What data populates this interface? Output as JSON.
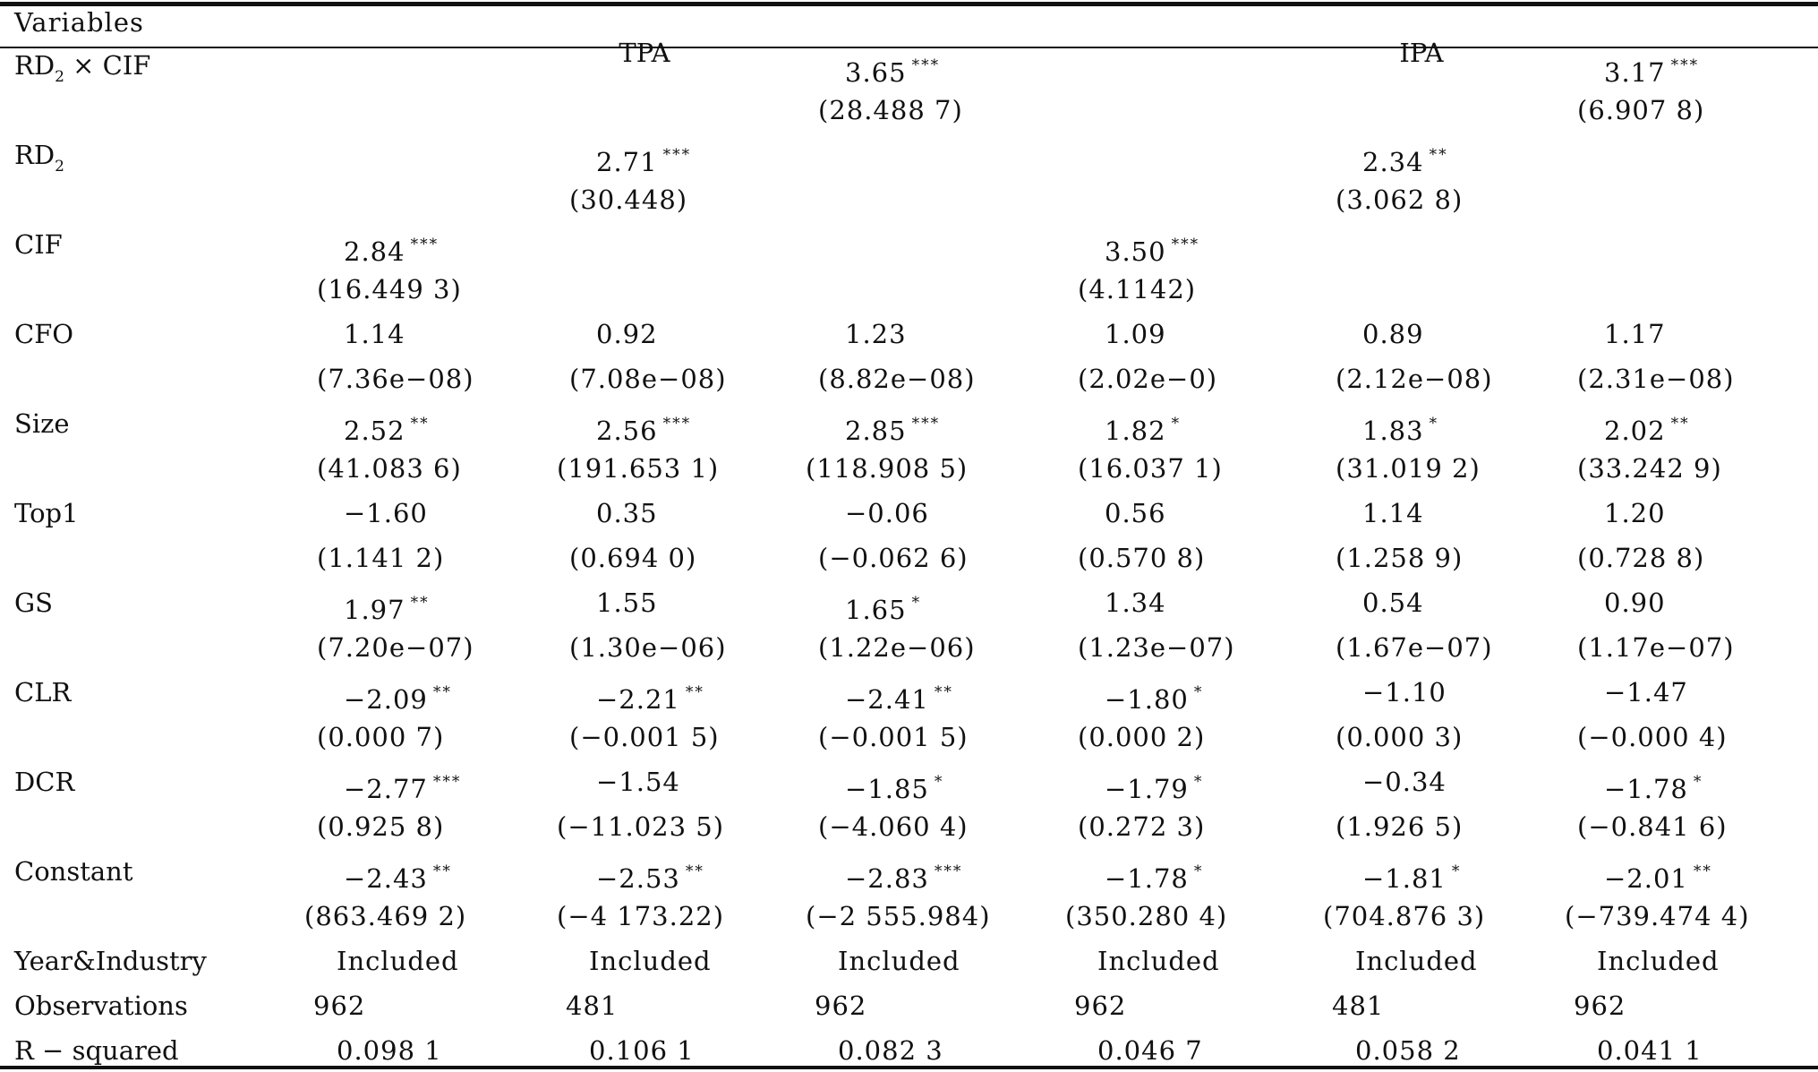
{
  "header": {
    "variables_label": "Variables",
    "group_tpa": "TPA",
    "group_ipa": "IPA"
  },
  "rows": [
    {
      "name": "RD₂ × CIF",
      "label_main": "RD",
      "label_sub": "2",
      "label_rest": " × CIF",
      "coef": [
        "",
        "",
        "3.65",
        "",
        "",
        "3.17"
      ],
      "stars": [
        "",
        "",
        "***",
        "",
        "",
        "***"
      ],
      "se": [
        "",
        "",
        "(28.488 7)",
        "",
        "",
        "(6.907 8)"
      ]
    },
    {
      "name": "RD₂",
      "label_main": "RD",
      "label_sub": "2",
      "label_rest": "",
      "coef": [
        "",
        "2.71",
        "",
        "",
        "2.34",
        ""
      ],
      "stars": [
        "",
        "***",
        "",
        "",
        "**",
        ""
      ],
      "se": [
        "",
        "(30.448)",
        "",
        "",
        "(3.062 8)",
        ""
      ]
    },
    {
      "name": "CIF",
      "label_main": "CIF",
      "label_sub": "",
      "label_rest": "",
      "coef": [
        "2.84",
        "",
        "",
        "3.50",
        "",
        ""
      ],
      "stars": [
        "***",
        "",
        "",
        "***",
        "",
        ""
      ],
      "se": [
        "(16.449 3)",
        "",
        "",
        "(4.1142)",
        "",
        ""
      ]
    },
    {
      "name": "CFO",
      "label_main": "CFO",
      "label_sub": "",
      "label_rest": "",
      "coef": [
        "1.14",
        "0.92",
        "1.23",
        "1.09",
        "0.89",
        "1.17"
      ],
      "stars": [
        "",
        "",
        "",
        "",
        "",
        ""
      ],
      "se": [
        "(7.36e−08)",
        "(7.08e−08)",
        "(8.82e−08)",
        "(2.02e−0)",
        "(2.12e−08)",
        "(2.31e−08)"
      ]
    },
    {
      "name": "Size",
      "label_main": "Size",
      "label_sub": "",
      "label_rest": "",
      "coef": [
        "2.52",
        "2.56",
        "2.85",
        "1.82",
        "1.83",
        "2.02"
      ],
      "stars": [
        "**",
        "***",
        "***",
        "*",
        "*",
        "**"
      ],
      "se": [
        "(41.083 6)",
        "(191.653 1)",
        "(118.908 5)",
        "(16.037 1)",
        "(31.019 2)",
        "(33.242 9)"
      ]
    },
    {
      "name": "Top1",
      "label_main": "Top1",
      "label_sub": "",
      "label_rest": "",
      "coef": [
        "−1.60",
        "0.35",
        "−0.06",
        "0.56",
        "1.14",
        "1.20"
      ],
      "stars": [
        "",
        "",
        "",
        "",
        "",
        ""
      ],
      "se": [
        "(1.141 2)",
        "(0.694 0)",
        "(−0.062 6)",
        "(0.570 8)",
        "(1.258 9)",
        "(0.728 8)"
      ]
    },
    {
      "name": "GS",
      "label_main": "GS",
      "label_sub": "",
      "label_rest": "",
      "coef": [
        "1.97",
        "1.55",
        "1.65",
        "1.34",
        "0.54",
        "0.90"
      ],
      "stars": [
        "**",
        "",
        "*",
        "",
        "",
        ""
      ],
      "se": [
        "(7.20e−07)",
        "(1.30e−06)",
        "(1.22e−06)",
        "(1.23e−07)",
        "(1.67e−07)",
        "(1.17e−07)"
      ]
    },
    {
      "name": "CLR",
      "label_main": "CLR",
      "label_sub": "",
      "label_rest": "",
      "coef": [
        "−2.09",
        "−2.21",
        "−2.41",
        "−1.80",
        "−1.10",
        "−1.47"
      ],
      "stars": [
        "**",
        "**",
        "**",
        "*",
        "",
        ""
      ],
      "se": [
        "(0.000 7)",
        "(−0.001 5)",
        "(−0.001 5)",
        "(0.000 2)",
        "(0.000 3)",
        "(−0.000 4)"
      ]
    },
    {
      "name": "DCR",
      "label_main": "DCR",
      "label_sub": "",
      "label_rest": "",
      "coef": [
        "−2.77",
        "−1.54",
        "−1.85",
        "−1.79",
        "−0.34",
        "−1.78"
      ],
      "stars": [
        "***",
        "",
        "*",
        "*",
        "",
        "*"
      ],
      "se": [
        "(0.925 8)",
        "(−11.023 5)",
        "(−4.060 4)",
        "(0.272 3)",
        "(1.926 5)",
        "(−0.841 6)"
      ]
    },
    {
      "name": "Constant",
      "label_main": "Constant",
      "label_sub": "",
      "label_rest": "",
      "coef": [
        "−2.43",
        "−2.53",
        "−2.83",
        "−1.78",
        "−1.81",
        "−2.01"
      ],
      "stars": [
        "**",
        "**",
        "***",
        "*",
        "*",
        "**"
      ],
      "se": [
        "(863.469 2)",
        "(−4 173.22)",
        "(−2 555.984)",
        "(350.280 4)",
        "(704.876 3)",
        "(−739.474 4)"
      ]
    }
  ],
  "footer_rows": [
    {
      "label": "Year&Industry",
      "values": [
        "Included",
        "Included",
        "Included",
        "Included",
        "Included",
        "Included"
      ]
    },
    {
      "label": "Observations",
      "values": [
        "962",
        "481",
        "962",
        "962",
        "481",
        "962"
      ]
    },
    {
      "label": "R − squared",
      "values": [
        "0.098 1",
        "0.106 1",
        "0.082 3",
        "0.046 7",
        "0.058 2",
        "0.041 1"
      ]
    }
  ]
}
